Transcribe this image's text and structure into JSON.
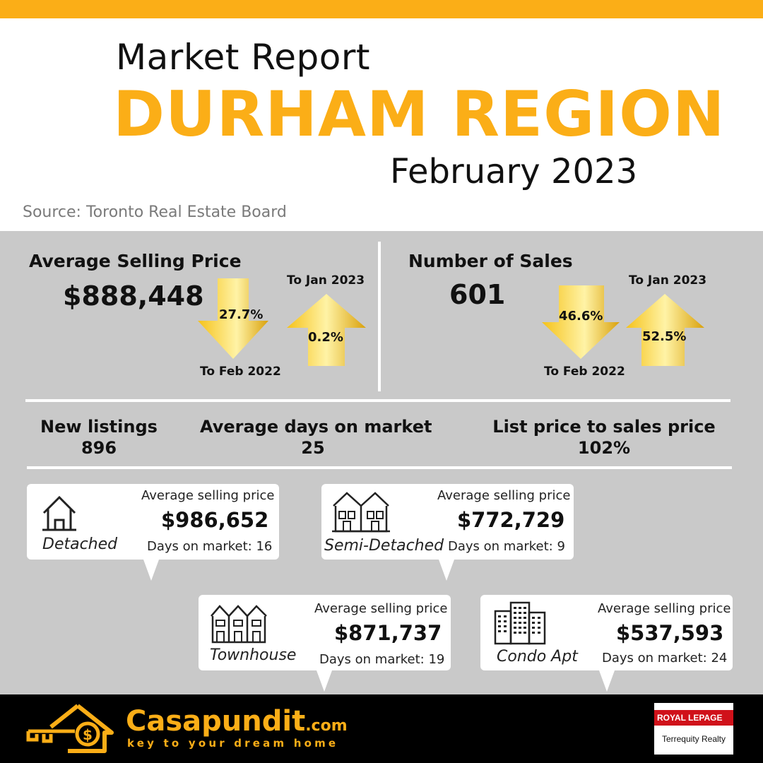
{
  "header": {
    "title_line1": "Market Report",
    "title_line2": "DURHAM REGION",
    "title_line3": "February 2023",
    "source": "Source: Toronto Real Estate Board"
  },
  "colors": {
    "accent": "#FBAE17",
    "panel": "#c9c9c9",
    "footer": "#000000"
  },
  "avg_selling_price": {
    "title": "Average Selling Price",
    "value": "$888,448",
    "down_pct": "27.7%",
    "down_label": "To Feb 2022",
    "up_pct": "0.2%",
    "up_label": "To Jan 2023"
  },
  "number_of_sales": {
    "title": "Number of Sales",
    "value": "601",
    "down_pct": "46.6%",
    "down_label": "To Feb 2022",
    "up_pct": "52.5%",
    "up_label": "To Jan 2023"
  },
  "metrics": [
    {
      "label": "New listings",
      "value": "896"
    },
    {
      "label": "Average days on market",
      "value": "25"
    },
    {
      "label": "List price to sales price",
      "value": "102%"
    }
  ],
  "property_types": [
    {
      "type": "Detached",
      "price_label": "Average selling price",
      "price": "$986,652",
      "days": "Days on market: 16",
      "icon": "house-icon"
    },
    {
      "type": "Semi-Detached",
      "price_label": "Average selling price",
      "price": "$772,729",
      "days": "Days on market: 9",
      "icon": "semi-detached-icon"
    },
    {
      "type": "Townhouse",
      "price_label": "Average selling price",
      "price": "$871,737",
      "days": "Days on market: 19",
      "icon": "townhouse-icon"
    },
    {
      "type": "Condo Apt",
      "price_label": "Average selling price",
      "price": "$537,593",
      "days": "Days on market: 24",
      "icon": "condo-building-icon"
    }
  ],
  "footer": {
    "brand": "Casapundit",
    "brand_suffix": ".com",
    "tagline": "key to your dream home",
    "partner_top": "ROYAL LEPAGE",
    "partner_bottom": "Terrequity Realty"
  }
}
